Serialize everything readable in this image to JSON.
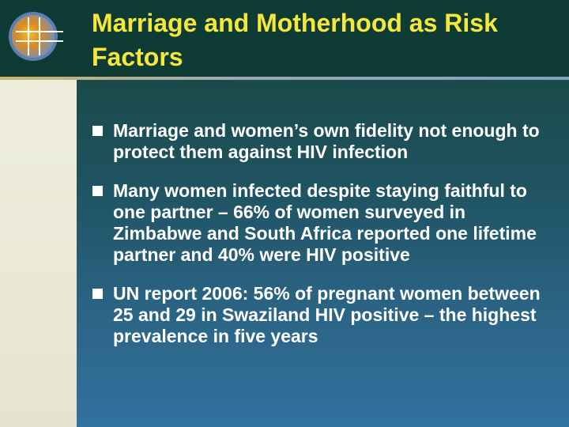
{
  "slide": {
    "title": "Marriage and Motherhood as Risk Factors",
    "bullets": [
      "Marriage and women’s own fidelity not enough to protect them against HIV infection",
      "Many women infected despite staying faithful to one partner – 66% of women surveyed in Zimbabwe and South Africa reported one lifetime partner and 40% were HIV positive",
      "UN report 2006: 56% of pregnant women between 25 and 29 in Swaziland HIV positive – the highest prevalence in five years"
    ]
  },
  "colors": {
    "header_bg": "#0f3b35",
    "title_text": "#f5e83a",
    "content_top": "#1a4a4a",
    "content_bottom": "#3272a0",
    "left_strip": "#eeeddc",
    "body_text": "#ffffff"
  },
  "icons": {
    "logo": "globe-logo-icon",
    "bullet": "square-bullet-icon"
  }
}
